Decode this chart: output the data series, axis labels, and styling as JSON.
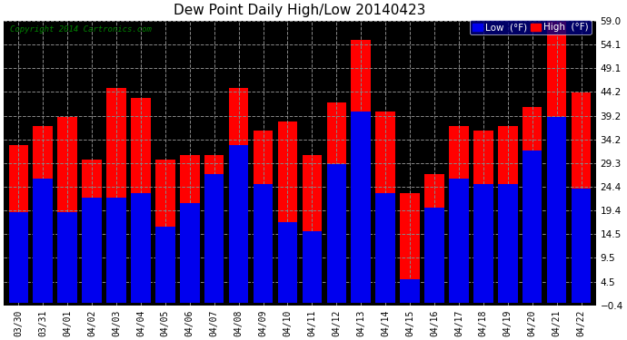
{
  "title": "Dew Point Daily High/Low 20140423",
  "copyright": "Copyright 2014 Cartronics.com",
  "dates": [
    "03/30",
    "03/31",
    "04/01",
    "04/02",
    "04/03",
    "04/04",
    "04/05",
    "04/06",
    "04/07",
    "04/08",
    "04/09",
    "04/10",
    "04/11",
    "04/12",
    "04/13",
    "04/14",
    "04/15",
    "04/16",
    "04/17",
    "04/18",
    "04/19",
    "04/20",
    "04/21",
    "04/22"
  ],
  "high": [
    33.0,
    37.0,
    39.0,
    30.0,
    45.0,
    43.0,
    30.0,
    31.0,
    31.0,
    45.0,
    36.0,
    38.0,
    31.0,
    42.0,
    55.0,
    40.0,
    23.0,
    27.0,
    37.0,
    36.0,
    37.0,
    41.0,
    59.0,
    44.0
  ],
  "low": [
    19.0,
    26.0,
    19.0,
    22.0,
    22.0,
    23.0,
    16.0,
    21.0,
    27.0,
    33.0,
    25.0,
    17.0,
    15.0,
    29.0,
    40.0,
    23.0,
    5.0,
    20.0,
    26.0,
    25.0,
    25.0,
    32.0,
    39.0,
    24.0
  ],
  "ylim": [
    -0.4,
    59.0
  ],
  "yticks": [
    -0.4,
    4.5,
    9.5,
    14.5,
    19.4,
    24.4,
    29.3,
    34.2,
    39.2,
    44.2,
    49.1,
    54.1,
    59.0
  ],
  "bar_width": 0.8,
  "high_color": "#ff0000",
  "low_color": "#0000ee",
  "bg_color": "#ffffff",
  "plot_bg_color": "#000000",
  "grid_color": "#888888",
  "title_fontsize": 11,
  "legend_low_label": "Low  (°F)",
  "legend_high_label": "High  (°F)"
}
